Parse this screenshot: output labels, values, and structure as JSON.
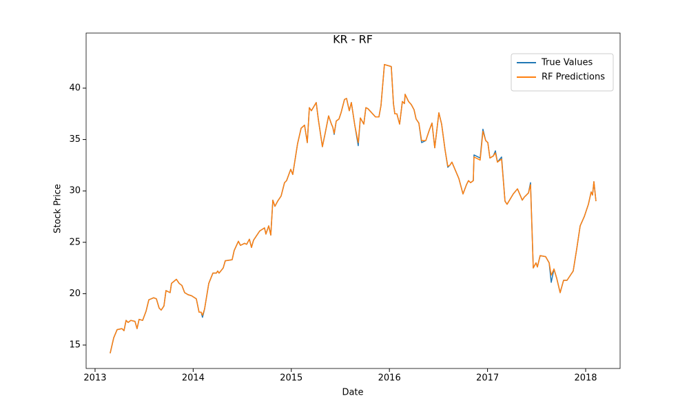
{
  "chart_data": {
    "type": "line",
    "title": "KR - RF",
    "xlabel": "Date",
    "ylabel": "Stock Price",
    "x": [
      2013.154,
      2013.19,
      2013.225,
      2013.274,
      2013.295,
      2013.316,
      2013.337,
      2013.365,
      2013.407,
      2013.428,
      2013.449,
      2013.485,
      2013.52,
      2013.548,
      2013.597,
      2013.625,
      2013.653,
      2013.674,
      2013.702,
      2013.723,
      2013.765,
      2013.779,
      2013.829,
      2013.857,
      2013.885,
      2013.913,
      2013.948,
      2013.983,
      2014.032,
      2014.06,
      2014.081,
      2014.095,
      2014.116,
      2014.159,
      2014.201,
      2014.236,
      2014.25,
      2014.264,
      2014.306,
      2014.327,
      2014.397,
      2014.418,
      2014.461,
      2014.482,
      2014.524,
      2014.545,
      2014.573,
      2014.594,
      2014.615,
      2014.678,
      2014.727,
      2014.741,
      2014.77,
      2014.791,
      2014.812,
      2014.833,
      2014.861,
      2014.896,
      2014.931,
      2014.952,
      2014.994,
      2015.015,
      2015.064,
      2015.1,
      2015.135,
      2015.163,
      2015.184,
      2015.205,
      2015.254,
      2015.275,
      2015.317,
      2015.345,
      2015.38,
      2015.409,
      2015.423,
      2015.437,
      2015.458,
      2015.486,
      2015.507,
      2015.542,
      2015.563,
      2015.591,
      2015.612,
      2015.647,
      2015.682,
      2015.704,
      2015.739,
      2015.76,
      2015.781,
      2015.858,
      2015.893,
      2015.914,
      2015.949,
      2016.019,
      2016.041,
      2016.055,
      2016.076,
      2016.104,
      2016.132,
      2016.153,
      2016.16,
      2016.195,
      2016.223,
      2016.251,
      2016.272,
      2016.3,
      2016.328,
      2016.371,
      2016.406,
      2016.434,
      2016.462,
      2016.504,
      2016.532,
      2016.567,
      2016.595,
      2016.616,
      2016.637,
      2016.708,
      2016.75,
      2016.785,
      2016.806,
      2016.827,
      2016.855,
      2016.862,
      2016.925,
      2016.953,
      2016.981,
      2017.003,
      2017.024,
      2017.059,
      2017.08,
      2017.101,
      2017.143,
      2017.178,
      2017.199,
      2017.262,
      2017.305,
      2017.354,
      2017.375,
      2017.417,
      2017.438,
      2017.466,
      2017.494,
      2017.508,
      2017.536,
      2017.592,
      2017.628,
      2017.649,
      2017.677,
      2017.705,
      2017.74,
      2017.775,
      2017.81,
      2017.845,
      2017.873,
      2017.908,
      2017.944,
      2017.986,
      2018.028,
      2018.056,
      2018.07,
      2018.084,
      2018.105
    ],
    "series": [
      {
        "name": "True Values",
        "color": "#1f77b4",
        "values": [
          14.2,
          15.7,
          16.5,
          16.6,
          16.4,
          17.4,
          17.2,
          17.4,
          17.3,
          16.6,
          17.5,
          17.4,
          18.3,
          19.4,
          19.6,
          19.5,
          18.6,
          18.4,
          18.8,
          20.3,
          20.1,
          21.0,
          21.4,
          21.0,
          20.8,
          20.1,
          19.9,
          19.8,
          19.5,
          18.2,
          18.2,
          17.7,
          18.5,
          21.0,
          22.0,
          22.0,
          22.2,
          22.0,
          22.5,
          23.2,
          23.3,
          24.2,
          25.1,
          24.7,
          24.9,
          24.8,
          25.3,
          24.5,
          25.2,
          26.1,
          26.4,
          25.8,
          26.6,
          25.7,
          29.1,
          28.5,
          29.0,
          29.5,
          30.8,
          31.0,
          32.1,
          31.6,
          34.6,
          36.1,
          36.4,
          34.7,
          38.1,
          37.8,
          38.6,
          37.0,
          34.3,
          35.6,
          37.3,
          36.5,
          36.2,
          35.5,
          36.8,
          37.0,
          37.6,
          38.9,
          39.0,
          37.8,
          38.6,
          36.4,
          34.4,
          37.1,
          36.5,
          38.1,
          38.0,
          37.2,
          37.2,
          38.3,
          42.3,
          42.1,
          38.5,
          37.5,
          37.5,
          36.5,
          38.7,
          38.5,
          39.4,
          38.7,
          38.4,
          37.9,
          37.0,
          36.6,
          34.7,
          34.9,
          35.9,
          36.6,
          34.2,
          37.6,
          36.5,
          34.0,
          32.3,
          32.5,
          32.8,
          31.2,
          29.7,
          30.6,
          31.0,
          30.8,
          31.0,
          33.5,
          33.2,
          36.0,
          34.9,
          34.7,
          33.2,
          33.4,
          33.9,
          32.8,
          33.3,
          29.0,
          28.7,
          29.7,
          30.2,
          29.1,
          29.4,
          29.8,
          30.8,
          22.5,
          23.0,
          22.6,
          23.7,
          23.6,
          23.0,
          21.1,
          22.4,
          21.5,
          20.1,
          21.3,
          21.3,
          21.8,
          22.2,
          24.3,
          26.6,
          27.5,
          28.7,
          29.9,
          29.6,
          30.9,
          29.0
        ]
      },
      {
        "name": "RF Predictions",
        "color": "#ff7f0e",
        "values": [
          14.2,
          15.7,
          16.5,
          16.6,
          16.4,
          17.4,
          17.2,
          17.4,
          17.3,
          16.6,
          17.5,
          17.4,
          18.3,
          19.4,
          19.6,
          19.5,
          18.6,
          18.4,
          18.8,
          20.3,
          20.1,
          21.0,
          21.4,
          21.0,
          20.8,
          20.1,
          19.9,
          19.8,
          19.5,
          18.2,
          18.2,
          17.9,
          18.5,
          21.0,
          22.0,
          22.0,
          22.2,
          22.0,
          22.5,
          23.2,
          23.3,
          24.2,
          25.1,
          24.7,
          24.9,
          24.8,
          25.3,
          24.5,
          25.2,
          26.1,
          26.4,
          25.8,
          26.6,
          25.7,
          29.1,
          28.5,
          29.0,
          29.5,
          30.8,
          31.0,
          32.1,
          31.6,
          34.6,
          36.1,
          36.4,
          34.7,
          38.1,
          37.8,
          38.6,
          37.0,
          34.3,
          35.6,
          37.3,
          36.5,
          36.2,
          35.6,
          36.8,
          37.0,
          37.6,
          38.9,
          39.0,
          37.8,
          38.6,
          36.4,
          34.7,
          37.1,
          36.5,
          38.1,
          38.0,
          37.2,
          37.2,
          38.3,
          42.3,
          42.1,
          38.5,
          37.5,
          37.5,
          36.5,
          38.7,
          38.5,
          39.4,
          38.7,
          38.4,
          37.9,
          37.0,
          36.6,
          34.9,
          34.9,
          35.9,
          36.6,
          34.2,
          37.6,
          36.5,
          34.0,
          32.4,
          32.5,
          32.8,
          31.2,
          29.7,
          30.6,
          31.0,
          30.8,
          31.0,
          33.3,
          33.0,
          35.8,
          34.9,
          34.7,
          33.2,
          33.4,
          33.7,
          32.8,
          33.1,
          29.0,
          28.7,
          29.7,
          30.2,
          29.1,
          29.4,
          29.8,
          30.6,
          22.5,
          23.0,
          22.6,
          23.7,
          23.6,
          23.0,
          21.8,
          22.4,
          21.5,
          20.1,
          21.3,
          21.3,
          21.8,
          22.2,
          24.3,
          26.6,
          27.5,
          28.7,
          29.9,
          29.6,
          30.9,
          29.0
        ]
      }
    ],
    "xlim": [
      2012.909,
      2018.351
    ],
    "xticks": [
      2013,
      2014,
      2015,
      2016,
      2017,
      2018
    ],
    "ylim": [
      12.72,
      45.36
    ],
    "yticks": [
      15,
      20,
      25,
      30,
      35,
      40
    ],
    "legend": "upper right"
  }
}
